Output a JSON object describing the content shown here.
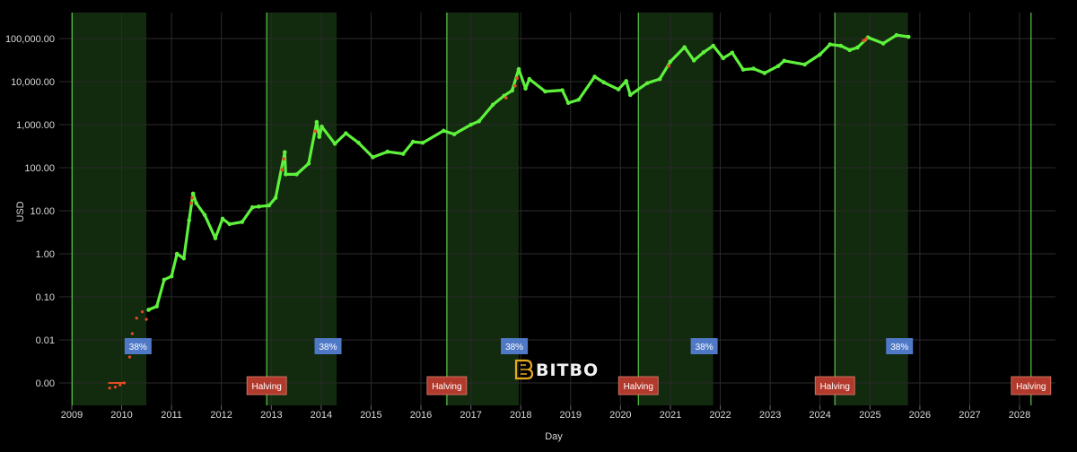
{
  "chart_data": {
    "type": "scatter",
    "xlabel": "Day",
    "ylabel": "USD",
    "y_scale": "log",
    "x_range": [
      "2009-01-01",
      "2028-07-01"
    ],
    "x_ticks": [
      "2009",
      "2010",
      "2011",
      "2012",
      "2013",
      "2014",
      "2015",
      "2016",
      "2017",
      "2018",
      "2019",
      "2020",
      "2021",
      "2022",
      "2023",
      "2024",
      "2025",
      "2026",
      "2027",
      "2028"
    ],
    "y_ticks": [
      "0.00",
      "0.01",
      "0.10",
      "1.00",
      "10.00",
      "100.00",
      "1,000.00",
      "10,000.00",
      "100,000.00"
    ],
    "shaded_periods": [
      {
        "start": "2009-01-03",
        "end": "2010-07-01"
      },
      {
        "start": "2012-11-28",
        "end": "2014-04-24"
      },
      {
        "start": "2016-07-09",
        "end": "2017-12-17"
      },
      {
        "start": "2020-05-11",
        "end": "2021-11-10"
      },
      {
        "start": "2024-04-19",
        "end": "2025-10-06"
      }
    ],
    "halvings": [
      "2012-11-28",
      "2016-07-09",
      "2020-05-11",
      "2024-04-19",
      "2028-03-25"
    ],
    "halving_label": "Halving",
    "period_label": "38%",
    "period_label_dates": [
      "2010-05-01",
      "2014-02-20",
      "2017-11-15",
      "2021-09-05",
      "2025-08-05"
    ],
    "price_series": [
      [
        "2010-07-17",
        0.05
      ],
      [
        "2010-09-15",
        0.06
      ],
      [
        "2010-11-08",
        0.25
      ],
      [
        "2011-01-01",
        0.3
      ],
      [
        "2011-02-10",
        1.0
      ],
      [
        "2011-04-01",
        0.78
      ],
      [
        "2011-05-10",
        6.0
      ],
      [
        "2011-06-08",
        25
      ],
      [
        "2011-07-01",
        15
      ],
      [
        "2011-09-01",
        8
      ],
      [
        "2011-11-18",
        2.3
      ],
      [
        "2012-01-10",
        6.5
      ],
      [
        "2012-03-01",
        4.9
      ],
      [
        "2012-06-01",
        5.5
      ],
      [
        "2012-08-15",
        12
      ],
      [
        "2012-10-01",
        12.5
      ],
      [
        "2012-12-15",
        13.3
      ],
      [
        "2013-02-01",
        20
      ],
      [
        "2013-04-09",
        230
      ],
      [
        "2013-04-16",
        70
      ],
      [
        "2013-07-05",
        70
      ],
      [
        "2013-10-01",
        125
      ],
      [
        "2013-11-29",
        1150
      ],
      [
        "2013-12-18",
        520
      ],
      [
        "2014-01-05",
        900
      ],
      [
        "2014-04-11",
        360
      ],
      [
        "2014-07-01",
        630
      ],
      [
        "2014-10-01",
        380
      ],
      [
        "2015-01-14",
        175
      ],
      [
        "2015-05-01",
        235
      ],
      [
        "2015-08-24",
        210
      ],
      [
        "2015-11-04",
        400
      ],
      [
        "2016-01-15",
        380
      ],
      [
        "2016-06-15",
        720
      ],
      [
        "2016-09-01",
        600
      ],
      [
        "2017-01-01",
        1000
      ],
      [
        "2017-03-01",
        1200
      ],
      [
        "2017-06-11",
        2900
      ],
      [
        "2017-09-01",
        4700
      ],
      [
        "2017-10-30",
        6200
      ],
      [
        "2017-12-17",
        19500
      ],
      [
        "2018-02-05",
        6900
      ],
      [
        "2018-03-05",
        11500
      ],
      [
        "2018-06-29",
        5900
      ],
      [
        "2018-11-01",
        6300
      ],
      [
        "2018-12-15",
        3200
      ],
      [
        "2019-03-01",
        3800
      ],
      [
        "2019-06-26",
        13000
      ],
      [
        "2019-09-01",
        9600
      ],
      [
        "2019-12-17",
        6600
      ],
      [
        "2020-02-12",
        10300
      ],
      [
        "2020-03-13",
        4900
      ],
      [
        "2020-07-15",
        9200
      ],
      [
        "2020-10-15",
        11500
      ],
      [
        "2020-12-31",
        29000
      ],
      [
        "2021-04-14",
        63000
      ],
      [
        "2021-06-22",
        31000
      ],
      [
        "2021-09-01",
        48000
      ],
      [
        "2021-11-10",
        68000
      ],
      [
        "2022-01-22",
        35000
      ],
      [
        "2022-03-29",
        47000
      ],
      [
        "2022-06-18",
        19000
      ],
      [
        "2022-09-01",
        20000
      ],
      [
        "2022-11-21",
        15800
      ],
      [
        "2023-03-01",
        23000
      ],
      [
        "2023-04-14",
        30500
      ],
      [
        "2023-09-11",
        25000
      ],
      [
        "2023-12-31",
        42300
      ],
      [
        "2024-03-14",
        73000
      ],
      [
        "2024-06-01",
        68000
      ],
      [
        "2024-08-05",
        54000
      ],
      [
        "2024-10-01",
        62000
      ],
      [
        "2024-12-17",
        106000
      ],
      [
        "2025-04-08",
        77000
      ],
      [
        "2025-07-14",
        120000
      ],
      [
        "2025-10-10",
        110000
      ]
    ],
    "early_points": [
      [
        "2009-10-05",
        0.00076
      ],
      [
        "2009-11-15",
        0.0008
      ],
      [
        "2009-12-20",
        0.0009
      ],
      [
        "2010-01-20",
        0.001
      ],
      [
        "2010-03-01",
        0.004
      ],
      [
        "2010-03-20",
        0.014
      ],
      [
        "2010-04-20",
        0.032
      ],
      [
        "2010-06-01",
        0.045
      ],
      [
        "2010-07-01",
        0.03
      ]
    ],
    "colors": {
      "price": "#5ef23c",
      "price_hot": "#e84a23",
      "period_fill": "#122a0e",
      "period_line": "#5cc84a",
      "halving_tag": "#b23a2c",
      "period_tag": "#4f79c6",
      "grid": "#2b2b2b"
    }
  },
  "brand": {
    "name": "BITBO",
    "icon": "bitbo-logo-icon"
  }
}
